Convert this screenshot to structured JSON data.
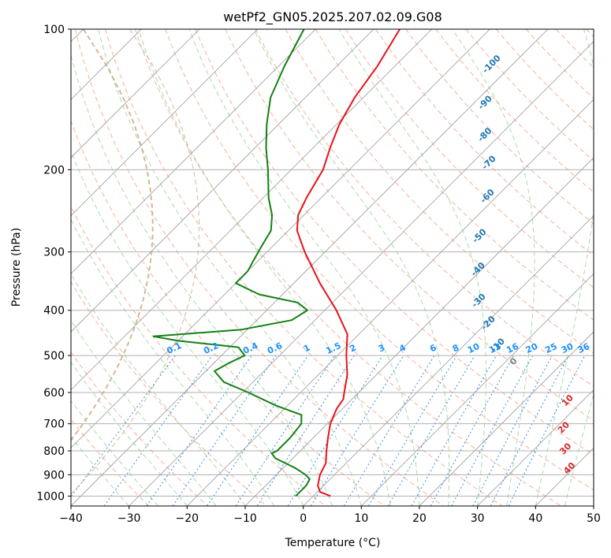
{
  "chart_data": {
    "type": "line",
    "title": "wetPf2_GN05.2025.207.02.09.G08",
    "xlabel": "Temperature (°C)",
    "ylabel": "Pressure (hPa)",
    "xlim": [
      -40,
      50
    ],
    "ylim": [
      1050,
      100
    ],
    "y_scale": "log",
    "skew": true,
    "grid": true,
    "x_ticks": [
      -40,
      -30,
      -20,
      -10,
      0,
      10,
      20,
      30,
      40,
      50
    ],
    "y_ticks": [
      100,
      200,
      300,
      400,
      500,
      600,
      700,
      800,
      900,
      1000
    ],
    "series": [
      {
        "role": "temperature",
        "color": "#e8121b",
        "points": [
          [
            1000,
            3.0
          ],
          [
            980,
            0.5
          ],
          [
            950,
            -1.0
          ],
          [
            900,
            -2.5
          ],
          [
            850,
            -3.5
          ],
          [
            800,
            -5.5
          ],
          [
            750,
            -7.5
          ],
          [
            700,
            -9.5
          ],
          [
            650,
            -11.0
          ],
          [
            620,
            -11.5
          ],
          [
            600,
            -12.5
          ],
          [
            550,
            -15.0
          ],
          [
            500,
            -18.5
          ],
          [
            450,
            -22.0
          ],
          [
            400,
            -28.0
          ],
          [
            350,
            -35.5
          ],
          [
            300,
            -43.5
          ],
          [
            270,
            -48.5
          ],
          [
            250,
            -51.0
          ],
          [
            230,
            -52.5
          ],
          [
            200,
            -54.5
          ],
          [
            180,
            -57.0
          ],
          [
            160,
            -59.5
          ],
          [
            140,
            -61.5
          ],
          [
            120,
            -63.0
          ],
          [
            100,
            -65.5
          ]
        ]
      },
      {
        "role": "dewpoint",
        "color": "#138013",
        "points": [
          [
            1000,
            -3.0
          ],
          [
            950,
            -3.0
          ],
          [
            920,
            -3.5
          ],
          [
            900,
            -5.0
          ],
          [
            870,
            -8.0
          ],
          [
            830,
            -13.0
          ],
          [
            810,
            -14.5
          ],
          [
            800,
            -14.0
          ],
          [
            750,
            -14.0
          ],
          [
            700,
            -14.5
          ],
          [
            670,
            -16.0
          ],
          [
            640,
            -22.0
          ],
          [
            600,
            -29.0
          ],
          [
            570,
            -35.0
          ],
          [
            540,
            -38.5
          ],
          [
            520,
            -37.5
          ],
          [
            500,
            -36.0
          ],
          [
            480,
            -38.5
          ],
          [
            465,
            -50.0
          ],
          [
            455,
            -55.0
          ],
          [
            440,
            -41.0
          ],
          [
            420,
            -34.0
          ],
          [
            400,
            -33.0
          ],
          [
            385,
            -36.0
          ],
          [
            370,
            -44.0
          ],
          [
            350,
            -50.0
          ],
          [
            330,
            -50.0
          ],
          [
            310,
            -51.0
          ],
          [
            290,
            -52.0
          ],
          [
            270,
            -53.0
          ],
          [
            250,
            -55.5
          ],
          [
            230,
            -59.0
          ],
          [
            200,
            -64.0
          ],
          [
            180,
            -68.0
          ],
          [
            160,
            -72.0
          ],
          [
            140,
            -76.0
          ],
          [
            120,
            -79.0
          ],
          [
            100,
            -82.0
          ]
        ]
      }
    ],
    "background_lines": {
      "isotherms": {
        "color": "#999999"
      },
      "dry_adiabats": {
        "color": "#f2967a"
      },
      "moist_adiabats": {
        "color": "#8fcc8f"
      },
      "mixing_ratio": {
        "color": "#2c8fe0"
      },
      "isohumes": {
        "color": "#c9a87a"
      }
    },
    "annotations": {
      "wet_bulb_labels": [
        {
          "value": "-100",
          "pressure": 120
        },
        {
          "value": "-90",
          "pressure": 145
        },
        {
          "value": "-80",
          "pressure": 170
        },
        {
          "value": "-70",
          "pressure": 195
        },
        {
          "value": "-60",
          "pressure": 230
        },
        {
          "value": "-50",
          "pressure": 280
        },
        {
          "value": "-40",
          "pressure": 330
        },
        {
          "value": "-30",
          "pressure": 385
        },
        {
          "value": "-20",
          "pressure": 430
        },
        {
          "value": "-10",
          "pressure": 480
        },
        {
          "value": "0",
          "pressure": 520
        }
      ],
      "wet_bulb_color": "#1f77b4",
      "zero_color": "#7f7f7f",
      "theta_labels": [
        {
          "value": "10",
          "pressure": 630
        },
        {
          "value": "20",
          "pressure": 720
        },
        {
          "value": "30",
          "pressure": 800
        },
        {
          "value": "40",
          "pressure": 880
        }
      ],
      "theta_color": "#d62728",
      "mixing_ratio_labels": [
        "0.1",
        "0.2",
        "0.4",
        "0.6",
        "1",
        "1.5",
        "2",
        "3",
        "4",
        "6",
        "8",
        "10",
        "13",
        "16",
        "20",
        "25",
        "30",
        "36"
      ],
      "mixing_ratio_label_color": "#1e90ff"
    }
  }
}
